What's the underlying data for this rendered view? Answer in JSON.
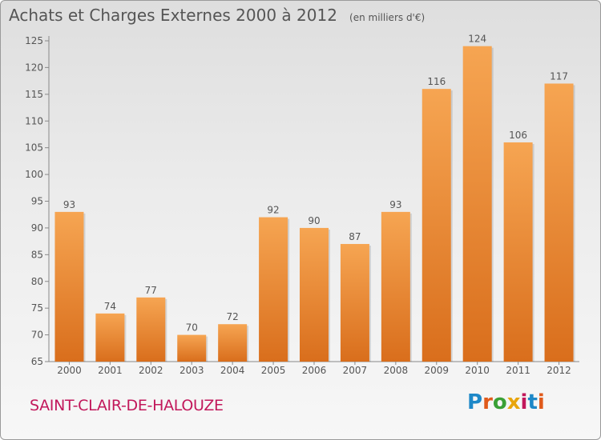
{
  "title": {
    "main": "Achats et Charges Externes 2000 à 2012",
    "unit": "(en milliers d'€)"
  },
  "commune": "SAINT-CLAIR-DE-HALOUZE",
  "brand": {
    "letters": [
      "P",
      "r",
      "o",
      "x",
      "i",
      "t",
      "i"
    ],
    "colors": [
      "#1e88c8",
      "#e05a1b",
      "#3aa036",
      "#e8a50c",
      "#c2185b",
      "#1e88c8",
      "#e05a1b"
    ]
  },
  "colors": {
    "bar_top": "#f6a552",
    "bar_bottom": "#d96e1c",
    "text": "#555555",
    "commune": "#c2185b"
  },
  "chart_data": {
    "type": "bar",
    "categories": [
      "2000",
      "2001",
      "2002",
      "2003",
      "2004",
      "2005",
      "2006",
      "2007",
      "2008",
      "2009",
      "2010",
      "2011",
      "2012"
    ],
    "values": [
      93,
      74,
      77,
      70,
      72,
      92,
      90,
      87,
      93,
      116,
      124,
      106,
      117
    ],
    "ylim": [
      65,
      125
    ],
    "yticks": [
      65,
      70,
      75,
      80,
      85,
      90,
      95,
      100,
      105,
      110,
      115,
      120,
      125
    ],
    "grid": false,
    "xlabel": "",
    "ylabel": ""
  }
}
